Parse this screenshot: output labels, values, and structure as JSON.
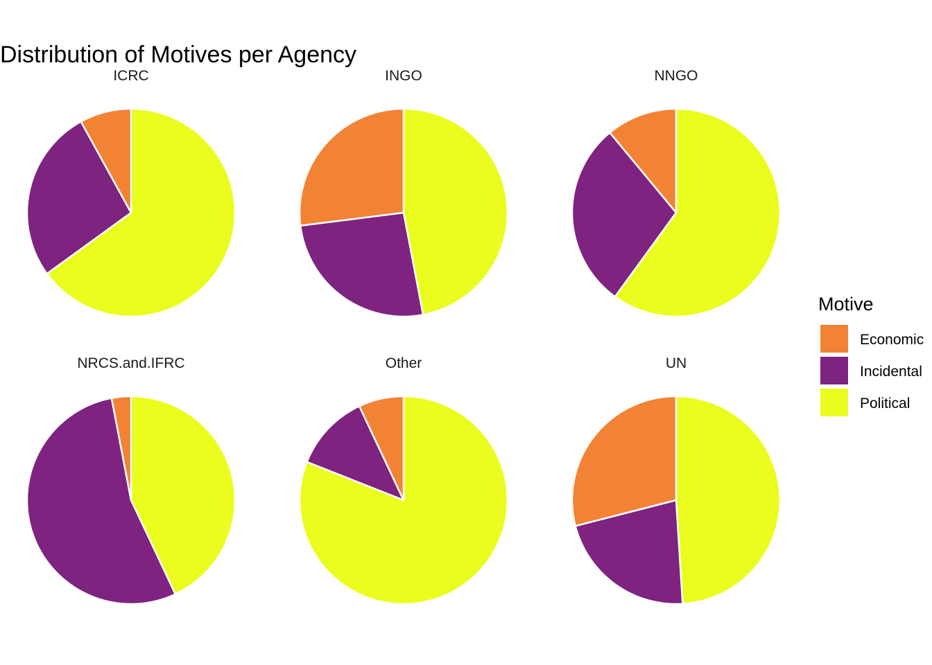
{
  "colors": {
    "Economic": "#F28335",
    "Incidental": "#7E237F",
    "Political": "#EAFD1E"
  },
  "chart_data": {
    "type": "pie",
    "title": "Distribution of Motives per Agency",
    "legend": {
      "title": "Motive",
      "position": "right",
      "entries": [
        "Economic",
        "Incidental",
        "Political"
      ]
    },
    "facets": [
      {
        "name": "ICRC",
        "slices": [
          {
            "label": "Economic",
            "value": 8
          },
          {
            "label": "Incidental",
            "value": 27
          },
          {
            "label": "Political",
            "value": 65
          }
        ]
      },
      {
        "name": "INGO",
        "slices": [
          {
            "label": "Economic",
            "value": 27
          },
          {
            "label": "Incidental",
            "value": 26
          },
          {
            "label": "Political",
            "value": 47
          }
        ]
      },
      {
        "name": "NNGO",
        "slices": [
          {
            "label": "Economic",
            "value": 11
          },
          {
            "label": "Incidental",
            "value": 29
          },
          {
            "label": "Political",
            "value": 60
          }
        ]
      },
      {
        "name": "NRCS.and.IFRC",
        "slices": [
          {
            "label": "Economic",
            "value": 3
          },
          {
            "label": "Incidental",
            "value": 54
          },
          {
            "label": "Political",
            "value": 43
          }
        ]
      },
      {
        "name": "Other",
        "slices": [
          {
            "label": "Economic",
            "value": 7
          },
          {
            "label": "Incidental",
            "value": 12
          },
          {
            "label": "Political",
            "value": 81
          }
        ]
      },
      {
        "name": "UN",
        "slices": [
          {
            "label": "Economic",
            "value": 29
          },
          {
            "label": "Incidental",
            "value": 22
          },
          {
            "label": "Political",
            "value": 49
          }
        ]
      }
    ]
  }
}
